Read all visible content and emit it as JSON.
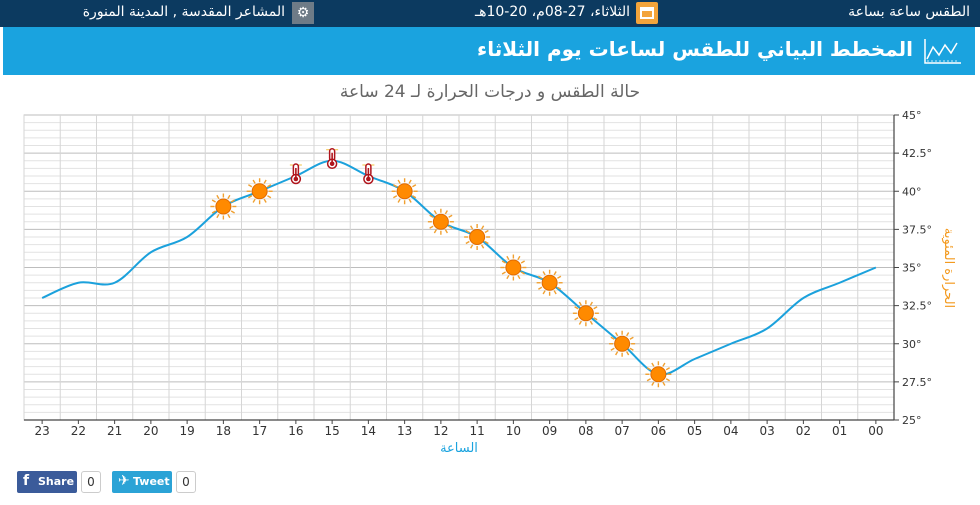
{
  "topbar": {
    "right_text": "الطقس ساعة بساعة",
    "date_text": "الثلاثاء، 27-08م، 20-10هـ",
    "location_text": "المشاعر المقدسة , المدينة المنورة",
    "gear_icon": "gear-icon",
    "calendar_icon": "calendar-icon"
  },
  "titlebar": {
    "title": "المخطط البياني للطقس لساعات يوم الثلاثاء",
    "icon": "line-chart-icon"
  },
  "colors": {
    "line": "#1ba1dc",
    "axis_title": "#f39a1f",
    "title_bg": "#1aa3df",
    "top_bg": "#0c3a60",
    "sun": "#ff8a00",
    "thermo": "#b0141c"
  },
  "chart_data": {
    "type": "line",
    "title": "حالة الطقس و درجات الحرارة لـ 24 ساعة",
    "xlabel": "الساعة",
    "ylabel": "الحرارة المئوية",
    "ylim": [
      25,
      45
    ],
    "ytick_labels": [
      "45°",
      "42.5°",
      "40°",
      "37.5°",
      "35°",
      "32.5°",
      "30°",
      "27.5°",
      "25°"
    ],
    "categories": [
      "00",
      "01",
      "02",
      "03",
      "04",
      "05",
      "06",
      "07",
      "08",
      "09",
      "10",
      "11",
      "12",
      "13",
      "14",
      "15",
      "16",
      "17",
      "18",
      "19",
      "20",
      "21",
      "22",
      "23"
    ],
    "values": [
      35,
      34,
      33,
      31,
      30,
      29,
      28,
      30,
      32,
      34,
      35,
      37,
      38,
      40,
      41,
      42,
      41,
      40,
      39,
      37,
      36,
      34,
      34,
      33
    ],
    "icons": [
      "",
      "",
      "",
      "",
      "",
      "",
      "sun",
      "sun",
      "sun",
      "sun",
      "sun",
      "sun",
      "sun",
      "sun",
      "thermometer",
      "thermometer",
      "thermometer",
      "sun",
      "sun",
      "",
      "",
      "",
      "",
      ""
    ],
    "grid": true,
    "x_reversed": true
  },
  "social": {
    "share_label": "Share",
    "share_count": "0",
    "tweet_label": "Tweet",
    "tweet_count": "0"
  }
}
